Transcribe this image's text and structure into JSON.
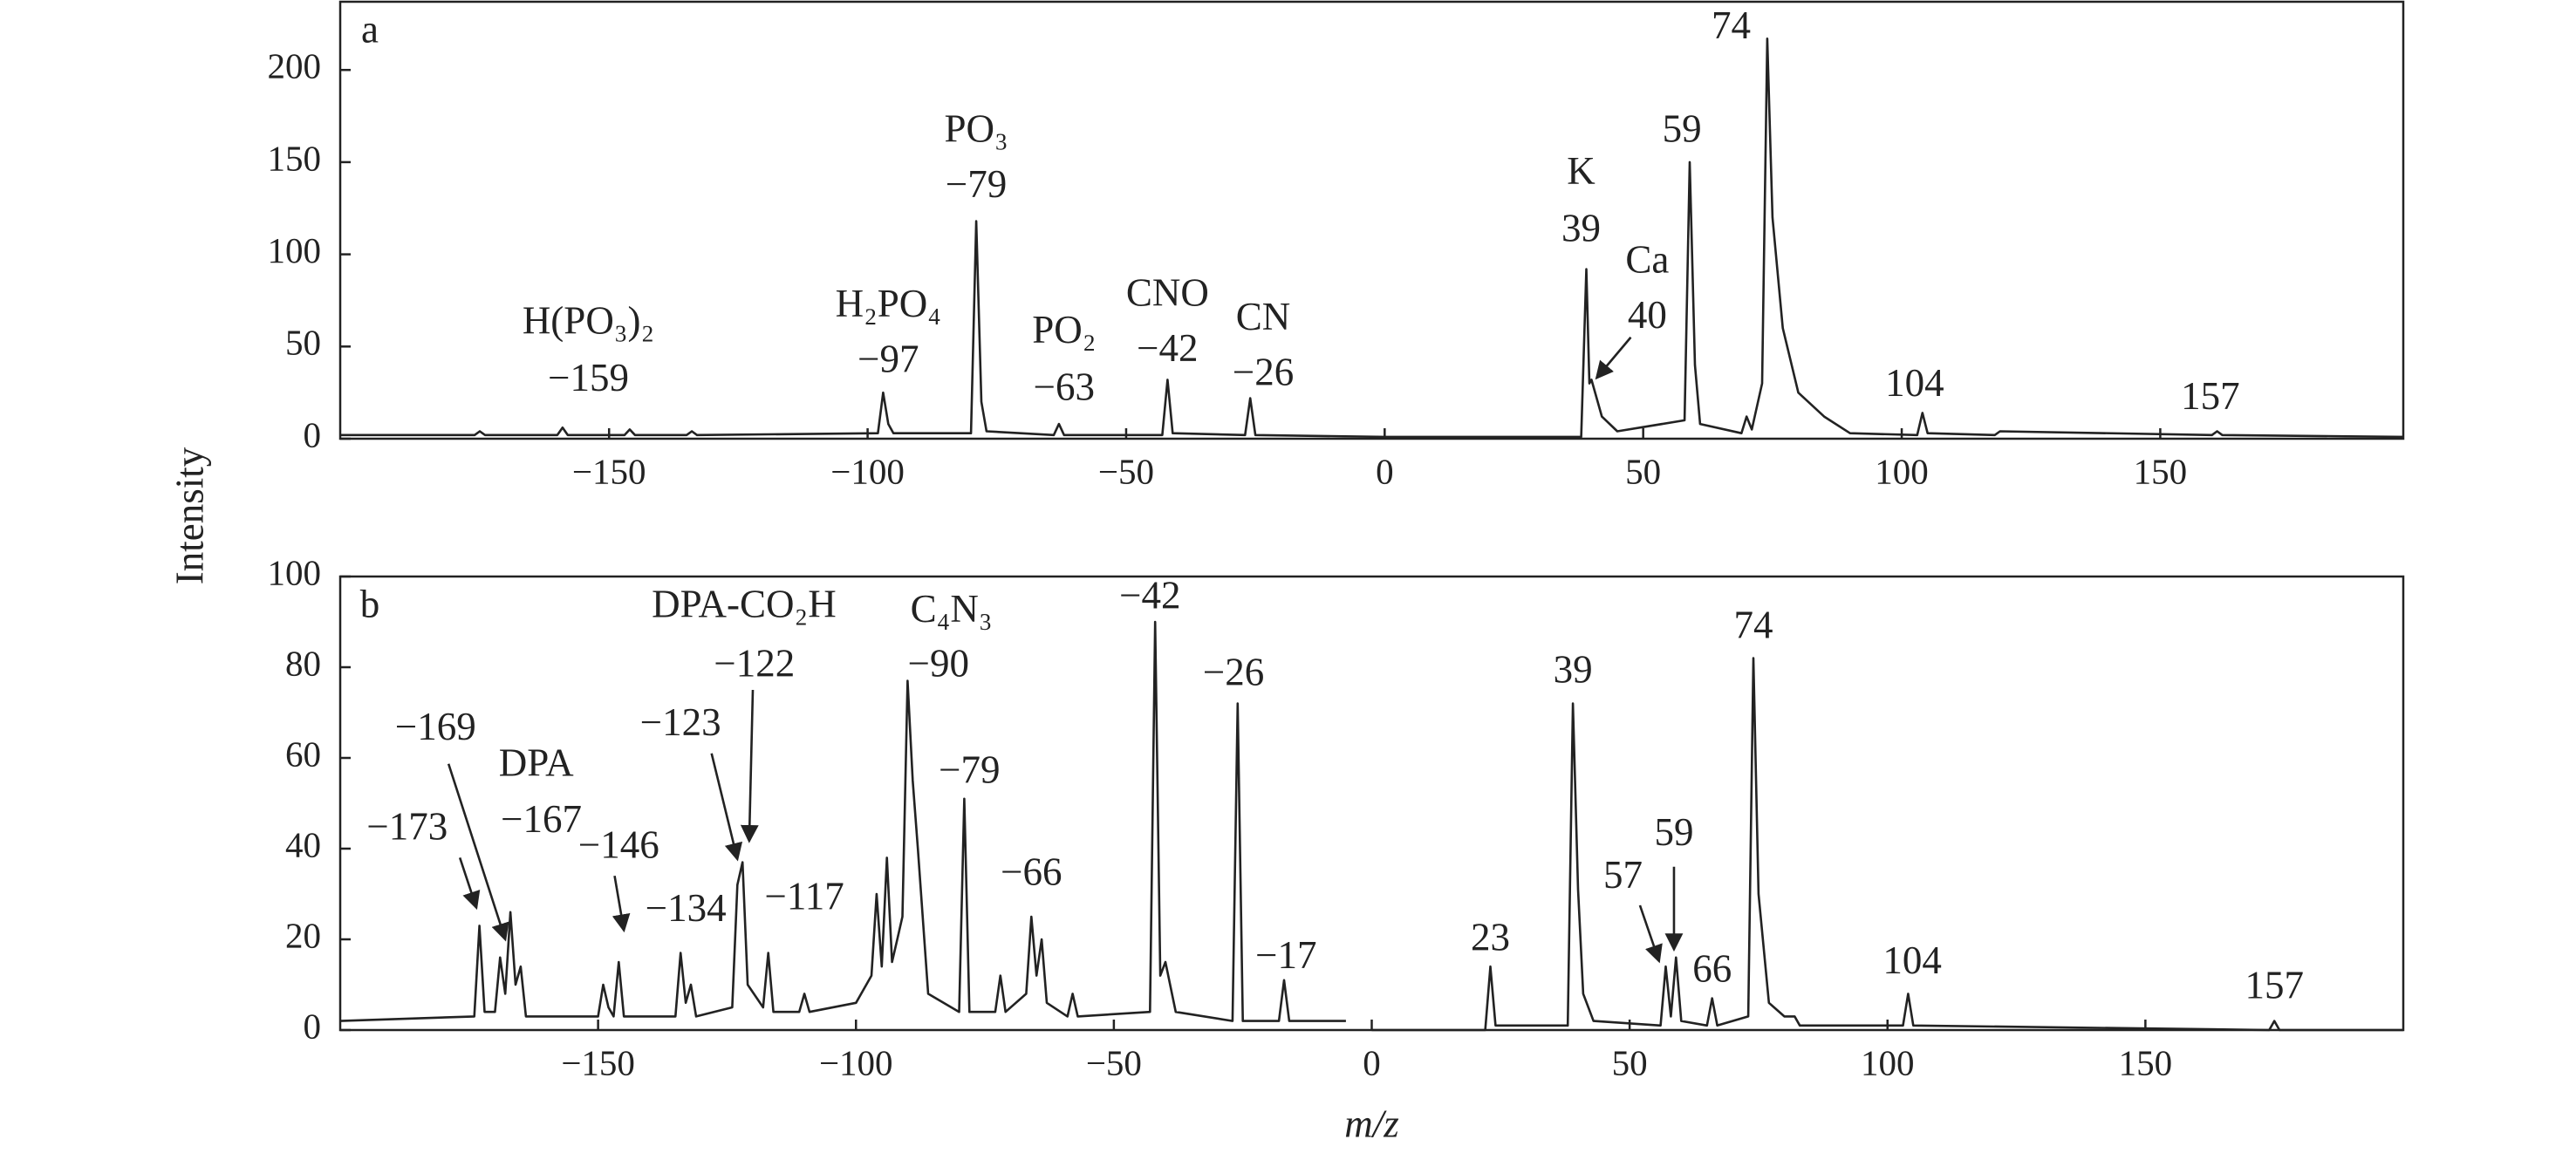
{
  "chart_data": [
    {
      "type": "line",
      "panel": "a",
      "ylabel": "Intensity",
      "color": "#222222",
      "xlim": [
        -202,
        197
      ],
      "ylim": [
        0,
        237
      ],
      "xticks": [
        {
          "value": -150,
          "label": "−150"
        },
        {
          "value": -100,
          "label": "−100"
        },
        {
          "value": -50,
          "label": "−50"
        },
        0,
        50,
        100,
        150
      ],
      "yticks": [
        0,
        50,
        100,
        150,
        200
      ],
      "x": [
        -202,
        -176,
        -175,
        -174,
        -160,
        -159,
        -158,
        -147,
        -146,
        -145,
        -135,
        -134,
        -133,
        -98,
        -97,
        -96,
        -95,
        -80,
        -79,
        -78,
        -77,
        -64,
        -63,
        -62,
        -43,
        -42,
        -41,
        -27,
        -26,
        -25,
        0,
        38,
        39,
        39.6,
        40,
        42,
        45,
        58,
        59,
        60,
        61,
        69,
        70,
        71,
        73,
        74,
        75,
        77,
        80,
        85,
        90,
        103,
        104,
        105,
        118,
        119,
        160,
        161,
        162,
        197
      ],
      "values": [
        2,
        2,
        4,
        2,
        2,
        6,
        2,
        2,
        5,
        2,
        2,
        4,
        2,
        3,
        25,
        8,
        3,
        3,
        118,
        20,
        4,
        2,
        8,
        2,
        2,
        32,
        3,
        2,
        22,
        2,
        1,
        1,
        92,
        30,
        32,
        12,
        4,
        10,
        150,
        40,
        8,
        3,
        12,
        5,
        30,
        217,
        120,
        60,
        25,
        12,
        3,
        2,
        14,
        3,
        2,
        4,
        2,
        4,
        2,
        1
      ],
      "annotations": [
        {
          "text": "H(PO₃)₂",
          "x": -154,
          "y": 62
        },
        {
          "text": "−159",
          "x": -154,
          "y": 31
        },
        {
          "text": "H₂PO₄",
          "x": -96,
          "y": 71
        },
        {
          "text": "−97",
          "x": -96,
          "y": 41
        },
        {
          "text": "PO₃",
          "x": -79,
          "y": 166
        },
        {
          "text": "−79",
          "x": -79,
          "y": 136
        },
        {
          "text": "PO₂",
          "x": -62,
          "y": 57
        },
        {
          "text": "−63",
          "x": -62,
          "y": 26
        },
        {
          "text": "CNO",
          "x": -42,
          "y": 77
        },
        {
          "text": "−42",
          "x": -42,
          "y": 47
        },
        {
          "text": "CN",
          "x": -23.5,
          "y": 64
        },
        {
          "text": "−26",
          "x": -23.5,
          "y": 34
        },
        {
          "text": "K",
          "x": 38,
          "y": 143
        },
        {
          "text": "39",
          "x": 38,
          "y": 112
        },
        {
          "text": "Ca",
          "x": 50.8,
          "y": 95
        },
        {
          "text": "40",
          "x": 50.8,
          "y": 65
        },
        {
          "text": "59",
          "x": 57.5,
          "y": 166
        },
        {
          "text": "74",
          "x": 67,
          "y": 222
        },
        {
          "text": "104",
          "x": 102.5,
          "y": 28
        },
        {
          "text": "157",
          "x": 159.7,
          "y": 21
        }
      ],
      "arrows": [
        {
          "from": [
            47.6,
            55
          ],
          "to": [
            41,
            33
          ]
        }
      ]
    },
    {
      "type": "line",
      "panel": "b",
      "xlabel": "m/z",
      "color": "#222222",
      "xlim": [
        -200,
        200
      ],
      "ylim": [
        0,
        100
      ],
      "xticks": [
        {
          "value": -150,
          "label": "−150"
        },
        {
          "value": -100,
          "label": "−100"
        },
        {
          "value": -50,
          "label": "−50"
        },
        0,
        50,
        100,
        150
      ],
      "yticks": [
        0,
        20,
        40,
        60,
        80,
        100
      ],
      "x": [
        -200,
        -174,
        -173,
        -172,
        -170,
        -169,
        -168,
        -167,
        -166,
        -165,
        -164,
        -150,
        -149,
        -148,
        -147,
        -146,
        -145,
        -135,
        -134,
        -133,
        -132,
        -131,
        -124,
        -123,
        -122,
        -121,
        -118,
        -117,
        -116,
        -111,
        -110,
        -109,
        -100,
        -97,
        -96,
        -95,
        -94,
        -93,
        -92,
        -91,
        -90,
        -89,
        -88,
        -86,
        -80,
        -79,
        -78,
        -73,
        -72,
        -71,
        -67,
        -66,
        -65,
        -64,
        -63,
        -59,
        -58,
        -57,
        -43,
        -42,
        -41,
        -40,
        -38,
        -27,
        -26,
        -25,
        -18,
        -17,
        -16,
        -5,
        -2.5,
        0,
        22,
        23,
        24,
        38,
        39,
        40,
        41,
        43,
        56,
        57,
        58,
        59,
        60,
        65,
        66,
        67,
        73,
        74,
        75,
        77,
        80,
        82,
        83,
        103,
        104,
        105,
        174,
        175,
        176,
        200
      ],
      "values": [
        2,
        3,
        23,
        4,
        4,
        16,
        8,
        26,
        10,
        14,
        3,
        3,
        10,
        5,
        3,
        15,
        3,
        3,
        17,
        6,
        10,
        3,
        5,
        32,
        37,
        10,
        5,
        17,
        4,
        4,
        8,
        4,
        6,
        12,
        30,
        14,
        38,
        15,
        20,
        25,
        77,
        55,
        40,
        8,
        4,
        51,
        4,
        4,
        12,
        4,
        8,
        25,
        12,
        20,
        6,
        3,
        8,
        3,
        4,
        90,
        12,
        15,
        4,
        2,
        72,
        2,
        2,
        11,
        2,
        2,
        null,
        0,
        0,
        14,
        1,
        1,
        72,
        31,
        8,
        2,
        1,
        14,
        3,
        16,
        2,
        1,
        7,
        1,
        3,
        82,
        30,
        6,
        3,
        3,
        1,
        1,
        8,
        1,
        0,
        2,
        0,
        0
      ],
      "annotations": [
        {
          "text": "DPA-CO₂H",
          "x": -121.7,
          "y": 93
        },
        {
          "text": "−122",
          "x": -119.7,
          "y": 80
        },
        {
          "text": "C₄N₃",
          "x": -81.5,
          "y": 92
        },
        {
          "text": "−90",
          "x": -84,
          "y": 80
        },
        {
          "text": "−42",
          "x": -43,
          "y": 95
        },
        {
          "text": "−26",
          "x": -26.8,
          "y": 78
        },
        {
          "text": "−79",
          "x": -78,
          "y": 56.5
        },
        {
          "text": "−66",
          "x": -66,
          "y": 34
        },
        {
          "text": "−17",
          "x": -16.6,
          "y": 15.6
        },
        {
          "text": "−169",
          "x": -181.5,
          "y": 66
        },
        {
          "text": "DPA",
          "x": -162,
          "y": 58
        },
        {
          "text": "−167",
          "x": -161,
          "y": 45.6
        },
        {
          "text": "−173",
          "x": -187,
          "y": 44
        },
        {
          "text": "−123",
          "x": -134,
          "y": 67
        },
        {
          "text": "−146",
          "x": -146,
          "y": 40
        },
        {
          "text": "−134",
          "x": -133,
          "y": 26
        },
        {
          "text": "−117",
          "x": -110,
          "y": 28.6
        },
        {
          "text": "23",
          "x": 23,
          "y": 19.6
        },
        {
          "text": "39",
          "x": 39,
          "y": 78.6
        },
        {
          "text": "57",
          "x": 48.7,
          "y": 33.3
        },
        {
          "text": "59",
          "x": 58.6,
          "y": 42.8
        },
        {
          "text": "66",
          "x": 66,
          "y": 12.7
        },
        {
          "text": "74",
          "x": 74,
          "y": 88.4
        },
        {
          "text": "104",
          "x": 104.8,
          "y": 14.5
        },
        {
          "text": "157",
          "x": 175,
          "y": 9
        }
      ],
      "arrows": [
        {
          "from": [
            -179,
            58.7
          ],
          "to": [
            -168,
            20
          ]
        },
        {
          "from": [
            -176.8,
            38
          ],
          "to": [
            -173.6,
            27
          ]
        },
        {
          "from": [
            -128,
            61
          ],
          "to": [
            -123,
            37.7
          ]
        },
        {
          "from": [
            -120,
            75
          ],
          "to": [
            -120.7,
            41.7
          ]
        },
        {
          "from": [
            -146.8,
            34
          ],
          "to": [
            -145,
            22
          ]
        },
        {
          "from": [
            52,
            27.5
          ],
          "to": [
            55.7,
            15.2
          ]
        },
        {
          "from": [
            58.6,
            36
          ],
          "to": [
            58.6,
            17.8
          ]
        }
      ]
    }
  ]
}
